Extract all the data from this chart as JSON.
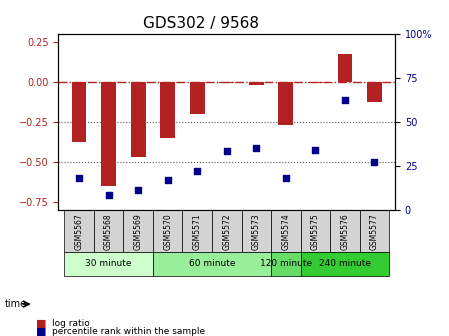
{
  "title": "GDS302 / 9568",
  "samples": [
    "GSM5567",
    "GSM5568",
    "GSM5569",
    "GSM5570",
    "GSM5571",
    "GSM5572",
    "GSM5573",
    "GSM5574",
    "GSM5575",
    "GSM5576",
    "GSM5577"
  ],
  "log_ratio": [
    -0.38,
    -0.65,
    -0.47,
    -0.35,
    -0.2,
    -0.01,
    -0.02,
    -0.27,
    -0.01,
    0.17,
    -0.13
  ],
  "percentile_rank": [
    18,
    8,
    11,
    17,
    22,
    33,
    35,
    18,
    34,
    62,
    27
  ],
  "bar_color": "#b22222",
  "dot_color": "#00008b",
  "ylim_left": [
    -0.8,
    0.3
  ],
  "ylim_right": [
    0,
    100
  ],
  "yticks_left": [
    0.25,
    0,
    -0.25,
    -0.5,
    -0.75
  ],
  "yticks_right": [
    100,
    75,
    50,
    25,
    0
  ],
  "hline_y": [
    0,
    -0.25,
    -0.5
  ],
  "hline_styles": [
    "dashdot",
    "dotted",
    "dotted"
  ],
  "hline_colors": [
    "#b22222",
    "#555555",
    "#555555"
  ],
  "groups": [
    {
      "label": "30 minute",
      "samples": [
        "GSM5567",
        "GSM5568",
        "GSM5569"
      ],
      "color": "#ccffcc"
    },
    {
      "label": "60 minute",
      "samples": [
        "GSM5570",
        "GSM5571",
        "GSM5572",
        "GSM5573"
      ],
      "color": "#99ee99"
    },
    {
      "label": "120 minute",
      "samples": [
        "GSM5574"
      ],
      "color": "#66dd66"
    },
    {
      "label": "240 minute",
      "samples": [
        "GSM5575",
        "GSM5576",
        "GSM5577"
      ],
      "color": "#33cc33"
    }
  ],
  "time_label": "time",
  "legend_bar_label": "log ratio",
  "legend_dot_label": "percentile rank within the sample",
  "background_color": "#ffffff",
  "plot_bg_color": "#ffffff",
  "tick_label_fontsize": 7,
  "title_fontsize": 11,
  "bar_width": 0.5
}
